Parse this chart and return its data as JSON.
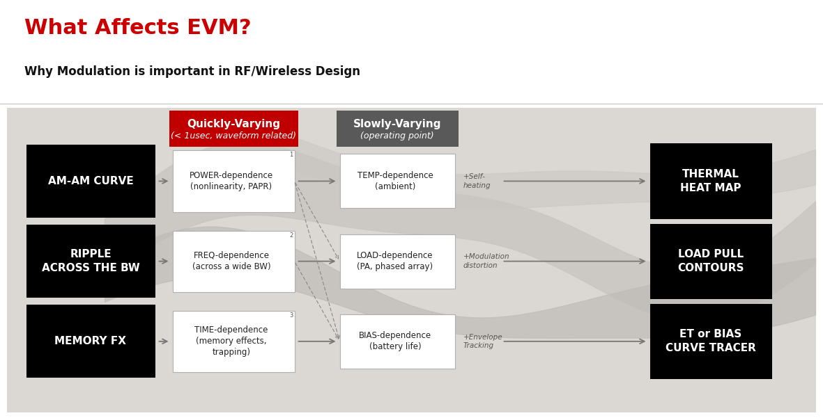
{
  "title": "What Affects EVM?",
  "subtitle": "Why Modulation is important in RF/Wireless Design",
  "title_color": "#cc0000",
  "subtitle_color": "#111111",
  "quickly_label1": "Quickly-Varying",
  "quickly_label2": "< 1usec, waveform related)",
  "slowly_label1": "Slowly-Varying",
  "slowly_label2": "(operating point)",
  "quickly_color": "#c00000",
  "slowly_color": "#595959",
  "left_boxes": [
    {
      "label": "AM-AM CURVE"
    },
    {
      "label": "RIPPLE\nACROSS THE BW"
    },
    {
      "label": "MEMORY FX"
    }
  ],
  "mid_boxes": [
    {
      "label": "POWER-dependence\n(nonlinearity, PAPR)",
      "num": "1"
    },
    {
      "label": "FREQ-dependence\n(across a wide BW)",
      "num": "2"
    },
    {
      "label": "TIME-dependence\n(memory effects,\ntrapping)",
      "num": "3"
    }
  ],
  "right_boxes": [
    {
      "label": "TEMP-dependence\n(ambient)",
      "note": "+Self-\nheating"
    },
    {
      "label": "LOAD-dependence\n(PA, phased array)",
      "note": "+Modulation\ndistortion"
    },
    {
      "label": "BIAS-dependence\n(battery life)",
      "note": "+Envelope\nTracking"
    }
  ],
  "far_right_boxes": [
    {
      "label": "THERMAL\nHEAT MAP"
    },
    {
      "label": "LOAD PULL\nCONTOURS"
    },
    {
      "label": "ET or BIAS\nCURVE TRACER"
    }
  ]
}
